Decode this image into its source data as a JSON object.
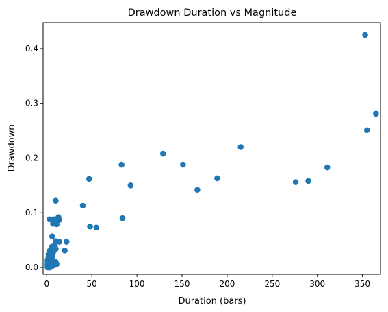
{
  "chart_data": {
    "type": "scatter",
    "title": "Drawdown Duration vs Magnitude",
    "xlabel": "Duration (bars)",
    "ylabel": "Drawdown",
    "xlim": [
      -4,
      370
    ],
    "ylim": [
      -0.0125,
      0.4475
    ],
    "xticks": [
      0,
      50,
      100,
      150,
      200,
      250,
      300,
      350
    ],
    "yticks": [
      0.0,
      0.1,
      0.2,
      0.3,
      0.4
    ],
    "xtick_labels": [
      "0",
      "50",
      "100",
      "150",
      "200",
      "250",
      "300",
      "350"
    ],
    "ytick_labels": [
      "0.0",
      "0.1",
      "0.2",
      "0.3",
      "0.4"
    ],
    "grid": false,
    "marker_color": "#1f77b4",
    "points": [
      [
        353,
        0.425
      ],
      [
        365,
        0.281
      ],
      [
        355,
        0.251
      ],
      [
        215,
        0.22
      ],
      [
        129,
        0.208
      ],
      [
        83,
        0.188
      ],
      [
        151,
        0.188
      ],
      [
        311,
        0.183
      ],
      [
        189,
        0.163
      ],
      [
        47,
        0.162
      ],
      [
        290,
        0.158
      ],
      [
        276,
        0.156
      ],
      [
        93,
        0.15
      ],
      [
        167,
        0.142
      ],
      [
        10,
        0.122
      ],
      [
        40,
        0.113
      ],
      [
        13,
        0.092
      ],
      [
        84,
        0.09
      ],
      [
        3,
        0.088
      ],
      [
        8,
        0.088
      ],
      [
        14,
        0.087
      ],
      [
        7,
        0.08
      ],
      [
        11,
        0.079
      ],
      [
        48,
        0.075
      ],
      [
        55,
        0.073
      ],
      [
        6,
        0.057
      ],
      [
        10,
        0.048
      ],
      [
        14,
        0.047
      ],
      [
        22,
        0.047
      ],
      [
        9,
        0.04
      ],
      [
        6,
        0.038
      ],
      [
        8,
        0.035
      ],
      [
        10,
        0.034
      ],
      [
        20,
        0.031
      ],
      [
        3,
        0.03
      ],
      [
        5,
        0.028
      ],
      [
        7,
        0.027
      ],
      [
        2,
        0.024
      ],
      [
        4,
        0.022
      ],
      [
        6,
        0.02
      ],
      [
        2,
        0.018
      ],
      [
        3,
        0.016
      ],
      [
        5,
        0.015
      ],
      [
        1,
        0.014
      ],
      [
        2,
        0.012
      ],
      [
        4,
        0.012
      ],
      [
        6,
        0.011
      ],
      [
        10,
        0.01
      ],
      [
        1,
        0.009
      ],
      [
        3,
        0.009
      ],
      [
        8,
        0.008
      ],
      [
        2,
        0.007
      ],
      [
        5,
        0.007
      ],
      [
        1,
        0.006
      ],
      [
        4,
        0.006
      ],
      [
        7,
        0.006
      ],
      [
        11,
        0.006
      ],
      [
        2,
        0.005
      ],
      [
        3,
        0.004
      ],
      [
        1,
        0.003
      ],
      [
        6,
        0.003
      ],
      [
        2,
        0.002
      ],
      [
        4,
        0.002
      ],
      [
        1,
        0.001
      ],
      [
        3,
        0.001
      ],
      [
        5,
        0.001
      ],
      [
        1,
        0.0
      ],
      [
        2,
        0.0
      ],
      [
        3,
        0.0
      ],
      [
        8,
        0.004
      ],
      [
        9,
        0.009
      ],
      [
        7,
        0.012
      ]
    ]
  }
}
